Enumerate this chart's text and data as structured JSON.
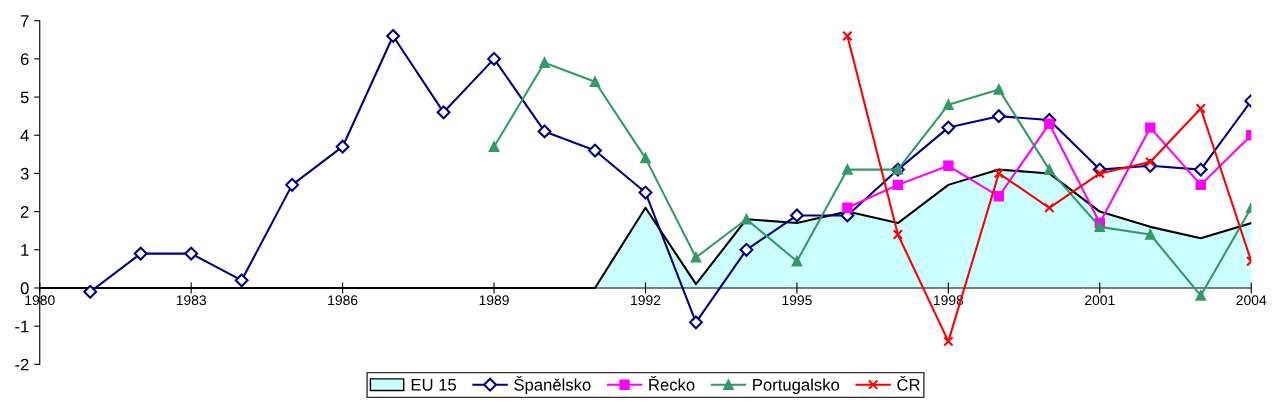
{
  "chart_data": {
    "type": "line",
    "xlim": [
      1980,
      2004
    ],
    "xticks": [
      1980,
      1983,
      1986,
      1989,
      1992,
      1995,
      1998,
      2001,
      2004
    ],
    "ylim": [
      -2,
      7
    ],
    "yticks": [
      -2,
      -1,
      0,
      1,
      2,
      3,
      4,
      5,
      6,
      7
    ],
    "grid": false,
    "legend": "bottom",
    "series": [
      {
        "name": "EU 15",
        "type": "area",
        "color": "#ccffff",
        "x": [
          1980,
          1981,
          1982,
          1983,
          1984,
          1985,
          1986,
          1987,
          1988,
          1989,
          1990,
          1991,
          1992,
          1993,
          1994,
          1995,
          1996,
          1997,
          1998,
          1999,
          2000,
          2001,
          2002,
          2003,
          2004
        ],
        "values": [
          0,
          0,
          0,
          0,
          0,
          0,
          0,
          0,
          0,
          0,
          0,
          0,
          2.1,
          0.1,
          1.8,
          1.7,
          2.0,
          1.7,
          2.7,
          3.1,
          3.0,
          2.0,
          1.6,
          1.3,
          1.7
        ]
      },
      {
        "name": "Španělsko",
        "marker": "diamond",
        "color": "#000080",
        "x": [
          1981,
          1982,
          1983,
          1984,
          1985,
          1986,
          1987,
          1988,
          1989,
          1990,
          1991,
          1992,
          1993,
          1994,
          1995,
          1996,
          1997,
          1998,
          1999,
          2000,
          2001,
          2002,
          2003,
          2004
        ],
        "values": [
          -0.1,
          0.9,
          0.9,
          0.2,
          2.7,
          3.7,
          6.6,
          4.6,
          6.0,
          4.1,
          3.6,
          2.5,
          -0.9,
          1.0,
          1.9,
          1.9,
          3.1,
          4.2,
          4.5,
          4.4,
          3.1,
          3.2,
          3.1,
          4.9
        ]
      },
      {
        "name": "Řecko",
        "marker": "square",
        "color": "#ff00ff",
        "x": [
          1996,
          1997,
          1998,
          1999,
          2000,
          2001,
          2002,
          2003,
          2004
        ],
        "values": [
          2.1,
          2.7,
          3.2,
          2.4,
          4.3,
          1.7,
          4.2,
          2.7,
          4.0
        ]
      },
      {
        "name": "Portugalsko",
        "marker": "triangle",
        "color": "#339966",
        "x": [
          1989,
          1990,
          1991,
          1992,
          1993,
          1994,
          1995,
          1996,
          1997,
          1998,
          1999,
          2000,
          2001,
          2002,
          2003,
          2004
        ],
        "values": [
          3.7,
          5.9,
          5.4,
          3.4,
          0.8,
          1.8,
          0.7,
          3.1,
          3.1,
          4.8,
          5.2,
          3.1,
          1.6,
          1.4,
          -0.2,
          2.1
        ]
      },
      {
        "name": "ČR",
        "marker": "cross",
        "color": "#ff0000",
        "x": [
          1996,
          1997,
          1998,
          1999,
          2000,
          2001,
          2002,
          2003,
          2004
        ],
        "values": [
          6.6,
          1.4,
          -1.4,
          3.0,
          2.1,
          3.0,
          3.3,
          4.7,
          0.7
        ]
      }
    ]
  }
}
